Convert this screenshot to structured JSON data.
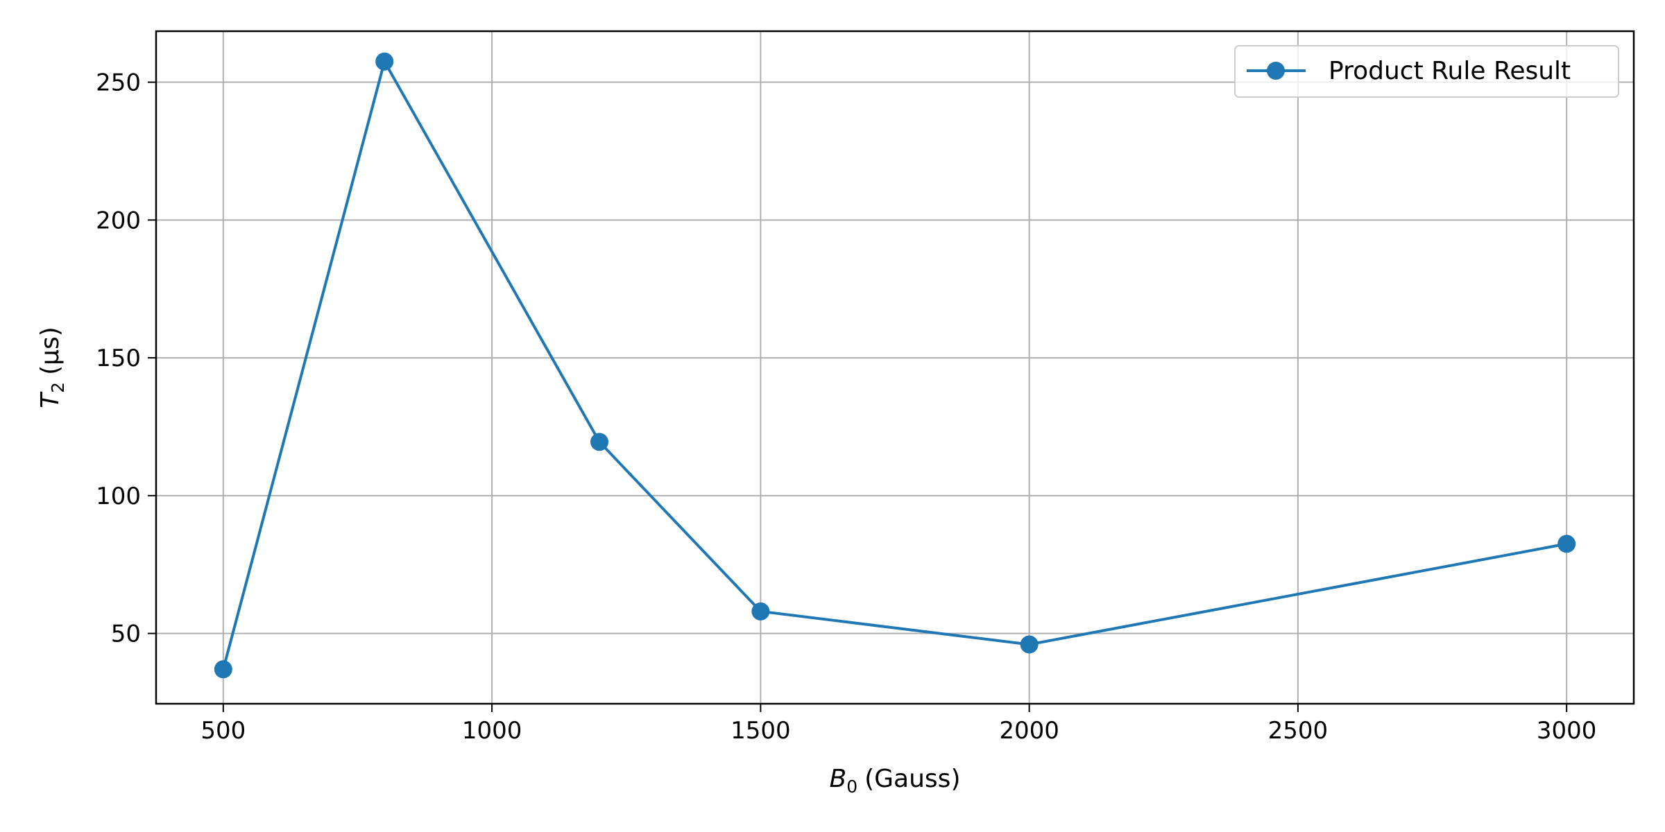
{
  "chart_data": {
    "type": "line",
    "title": "",
    "xlabel": {
      "symbol": "B",
      "subscript": "0",
      "unit": "(Gauss)"
    },
    "ylabel": {
      "symbol": "T",
      "subscript": "2",
      "unit": "(μs)"
    },
    "x": [
      500,
      800,
      1200,
      1500,
      2000,
      3000
    ],
    "series": [
      {
        "name": "Product Rule Result",
        "values": [
          37,
          257.5,
          119.5,
          58,
          46,
          82.5
        ]
      }
    ],
    "xlim": [
      375,
      3125
    ],
    "ylim": [
      24.5,
      268.5
    ],
    "xticks": [
      500,
      1000,
      1500,
      2000,
      2500,
      3000
    ],
    "yticks": [
      50,
      100,
      150,
      200,
      250
    ],
    "grid": true,
    "legend_position": "top-right",
    "colors": {
      "series": "#1f77b4",
      "grid": "#b0b0b0",
      "axes": "#000000"
    }
  }
}
